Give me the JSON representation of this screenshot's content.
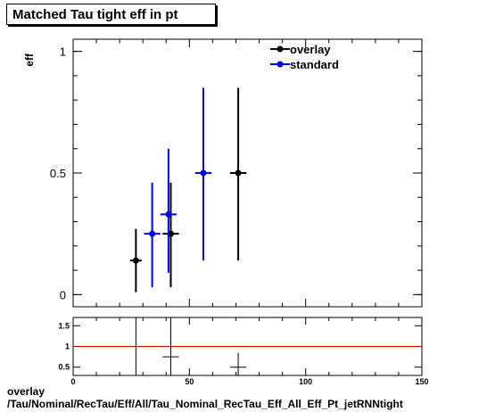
{
  "chart_data": [
    {
      "type": "scatter",
      "title": "Matched Tau tight eff in pt",
      "ylabel": "eff",
      "xlim": [
        0,
        150
      ],
      "ylim": [
        -0.05,
        1.05
      ],
      "yticks": [
        0,
        0.5,
        1
      ],
      "ytick_labels": [
        "0",
        "0.5",
        "1"
      ],
      "legend_position": "top",
      "series": [
        {
          "name": "overlay",
          "color": "#000000",
          "points": [
            {
              "x": 27,
              "xerr": 2.5,
              "y": 0.14,
              "ylo": 0.01,
              "yhi": 0.27
            },
            {
              "x": 42,
              "xerr": 3.5,
              "y": 0.25,
              "ylo": 0.03,
              "yhi": 0.46
            },
            {
              "x": 71,
              "xerr": 3.5,
              "y": 0.5,
              "ylo": 0.14,
              "yhi": 0.85
            }
          ]
        },
        {
          "name": "standard",
          "color": "#0000ee",
          "points": [
            {
              "x": 34,
              "xerr": 3.5,
              "y": 0.25,
              "ylo": 0.03,
              "yhi": 0.46
            },
            {
              "x": 41,
              "xerr": 3.5,
              "y": 0.33,
              "ylo": 0.09,
              "yhi": 0.6
            },
            {
              "x": 56,
              "xerr": 3.5,
              "y": 0.5,
              "ylo": 0.14,
              "yhi": 0.85
            }
          ]
        }
      ]
    },
    {
      "type": "scatter",
      "xlim": [
        0,
        150
      ],
      "ylim": [
        0.3,
        1.7
      ],
      "yticks": [
        0.5,
        1,
        1.5
      ],
      "ytick_labels": [
        "0.5",
        "1",
        "1.5"
      ],
      "xticks": [
        0,
        50,
        100,
        150
      ],
      "xtick_labels": [
        "0",
        "50",
        "100",
        "150"
      ],
      "reference_line": {
        "y": 1,
        "color": "#cc0000"
      },
      "points": [
        {
          "x": 27,
          "xerr": 0,
          "y": 1.7,
          "ylo": 0.3,
          "yhi": 1.7
        },
        {
          "x": 42,
          "xerr": 3.5,
          "y": 0.75,
          "ylo": 0.3,
          "yhi": 1.7
        },
        {
          "x": 71,
          "xerr": 3.5,
          "y": 0.5,
          "ylo": 0.3,
          "yhi": 0.85
        }
      ]
    }
  ],
  "footer": {
    "line1": "overlay",
    "line2": "/Tau/Nominal/RecTau/Eff/All/Tau_Nominal_RecTau_Eff_All_Eff_Pt_jetRNNtight"
  }
}
